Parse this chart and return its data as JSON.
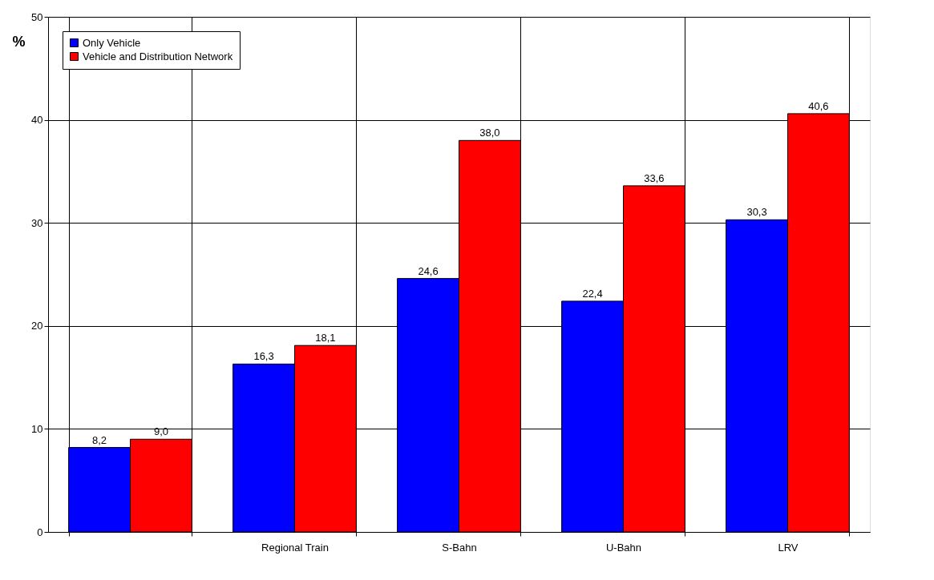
{
  "chart_data": {
    "type": "bar",
    "ylabel": "%",
    "categories": [
      null,
      "Regional Train",
      "S-Bahn",
      "U-Bahn",
      "LRV"
    ],
    "series": [
      {
        "name": "Only Vehicle",
        "color": "#0000ff",
        "values": [
          8.2,
          16.3,
          24.6,
          22.4,
          30.3
        ],
        "value_labels": [
          "8,2",
          "16,3",
          "24,6",
          "22,4",
          "30,3"
        ]
      },
      {
        "name": "Vehicle and Distribution Network",
        "color": "#ff0000",
        "values": [
          9.0,
          18.1,
          38.0,
          33.6,
          40.6
        ],
        "value_labels": [
          "9,0",
          "18,1",
          "38,0",
          "33,6",
          "40,6"
        ]
      }
    ],
    "ylim": [
      0,
      50
    ],
    "yticks": [
      0,
      10,
      20,
      30,
      40,
      50
    ],
    "grid": true,
    "legend": "top left"
  }
}
